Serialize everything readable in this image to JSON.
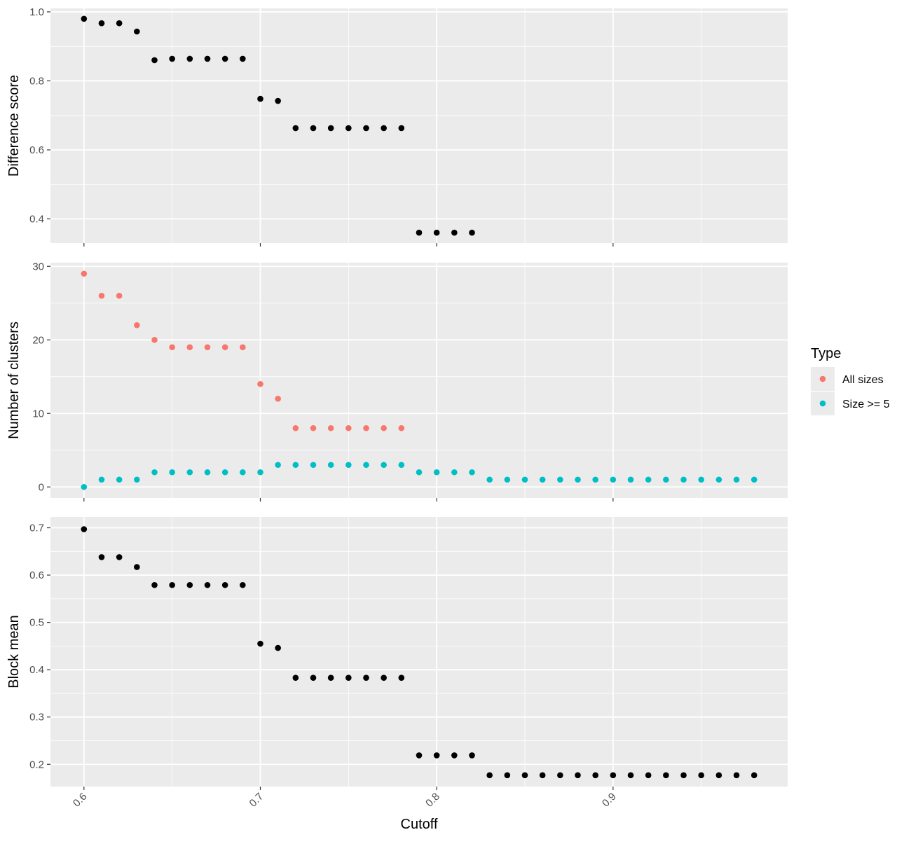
{
  "chart_data": {
    "type": "scatter",
    "xlabel": "Cutoff",
    "xlim": [
      0.581,
      0.999
    ],
    "xticks": [
      0.6,
      0.7,
      0.8,
      0.9
    ],
    "xtick_labels": [
      "0.6",
      "0.7",
      "0.8",
      "0.9"
    ],
    "x_minor_breaks": [
      0.65,
      0.75,
      0.85,
      0.95
    ],
    "x_tick_label_rotation_deg": -45,
    "grid": true,
    "panels": [
      {
        "ylabel": "Difference score",
        "ylim": [
          0.33,
          1.01
        ],
        "yticks": [
          0.4,
          0.6,
          0.8,
          1.0
        ],
        "ytick_labels": [
          "0.4",
          "0.6",
          "0.8",
          "1.0"
        ],
        "y_minor_breaks": [
          0.5,
          0.7,
          0.9
        ],
        "series": [
          {
            "color": "#000000",
            "x": [
              0.6,
              0.61,
              0.62,
              0.63,
              0.64,
              0.65,
              0.66,
              0.67,
              0.68,
              0.69,
              0.7,
              0.71,
              0.72,
              0.73,
              0.74,
              0.75,
              0.76,
              0.77,
              0.78,
              0.79,
              0.8,
              0.81,
              0.82
            ],
            "y": [
              0.98,
              0.967,
              0.967,
              0.943,
              0.86,
              0.864,
              0.864,
              0.864,
              0.864,
              0.864,
              0.748,
              0.742,
              0.663,
              0.663,
              0.663,
              0.663,
              0.663,
              0.663,
              0.663,
              0.36,
              0.36,
              0.36,
              0.36
            ]
          }
        ]
      },
      {
        "ylabel": "Number of clusters",
        "ylim": [
          -1.5,
          30.5
        ],
        "yticks": [
          0,
          10,
          20,
          30
        ],
        "ytick_labels": [
          "0",
          "10",
          "20",
          "30"
        ],
        "y_minor_breaks": [
          5,
          15,
          25
        ],
        "series": [
          {
            "name": "All sizes",
            "color": "#F8766D",
            "x": [
              0.6,
              0.61,
              0.62,
              0.63,
              0.64,
              0.65,
              0.66,
              0.67,
              0.68,
              0.69,
              0.7,
              0.71,
              0.72,
              0.73,
              0.74,
              0.75,
              0.76,
              0.77,
              0.78
            ],
            "y": [
              29,
              26,
              26,
              22,
              20,
              19,
              19,
              19,
              19,
              19,
              14,
              12,
              8,
              8,
              8,
              8,
              8,
              8,
              8
            ]
          },
          {
            "name": "Size >= 5",
            "color": "#00BFC4",
            "x": [
              0.6,
              0.61,
              0.62,
              0.63,
              0.64,
              0.65,
              0.66,
              0.67,
              0.68,
              0.69,
              0.7,
              0.71,
              0.72,
              0.73,
              0.74,
              0.75,
              0.76,
              0.77,
              0.78,
              0.79,
              0.8,
              0.81,
              0.82,
              0.83,
              0.84,
              0.85,
              0.86,
              0.87,
              0.88,
              0.89,
              0.9,
              0.91,
              0.92,
              0.93,
              0.94,
              0.95,
              0.96,
              0.97,
              0.98
            ],
            "y": [
              0,
              1,
              1,
              1,
              2,
              2,
              2,
              2,
              2,
              2,
              2,
              3,
              3,
              3,
              3,
              3,
              3,
              3,
              3,
              2,
              2,
              2,
              2,
              1,
              1,
              1,
              1,
              1,
              1,
              1,
              1,
              1,
              1,
              1,
              1,
              1,
              1,
              1,
              1
            ]
          }
        ]
      },
      {
        "ylabel": "Block mean",
        "ylim": [
          0.153,
          0.723
        ],
        "yticks": [
          0.2,
          0.3,
          0.4,
          0.5,
          0.6,
          0.7
        ],
        "ytick_labels": [
          "0.2",
          "0.3",
          "0.4",
          "0.5",
          "0.6",
          "0.7"
        ],
        "y_minor_breaks": [
          0.25,
          0.35,
          0.45,
          0.55,
          0.65
        ],
        "series": [
          {
            "color": "#000000",
            "x": [
              0.6,
              0.61,
              0.62,
              0.63,
              0.64,
              0.65,
              0.66,
              0.67,
              0.68,
              0.69,
              0.7,
              0.71,
              0.72,
              0.73,
              0.74,
              0.75,
              0.76,
              0.77,
              0.78,
              0.79,
              0.8,
              0.81,
              0.82,
              0.83,
              0.84,
              0.85,
              0.86,
              0.87,
              0.88,
              0.89,
              0.9,
              0.91,
              0.92,
              0.93,
              0.94,
              0.95,
              0.96,
              0.97,
              0.98
            ],
            "y": [
              0.697,
              0.638,
              0.638,
              0.617,
              0.579,
              0.579,
              0.579,
              0.579,
              0.579,
              0.579,
              0.455,
              0.446,
              0.383,
              0.383,
              0.383,
              0.383,
              0.383,
              0.383,
              0.383,
              0.219,
              0.219,
              0.219,
              0.219,
              0.177,
              0.177,
              0.177,
              0.177,
              0.177,
              0.177,
              0.177,
              0.177,
              0.177,
              0.177,
              0.177,
              0.177,
              0.177,
              0.177,
              0.177,
              0.177
            ]
          }
        ]
      }
    ],
    "legend": {
      "title": "Type",
      "position": "right",
      "entries": [
        {
          "label": "All sizes",
          "color": "#F8766D"
        },
        {
          "label": "Size >= 5",
          "color": "#00BFC4"
        }
      ]
    },
    "colors": {
      "panel_background": "#EBEBEB",
      "grid": "#FFFFFF",
      "points_default": "#000000"
    }
  }
}
